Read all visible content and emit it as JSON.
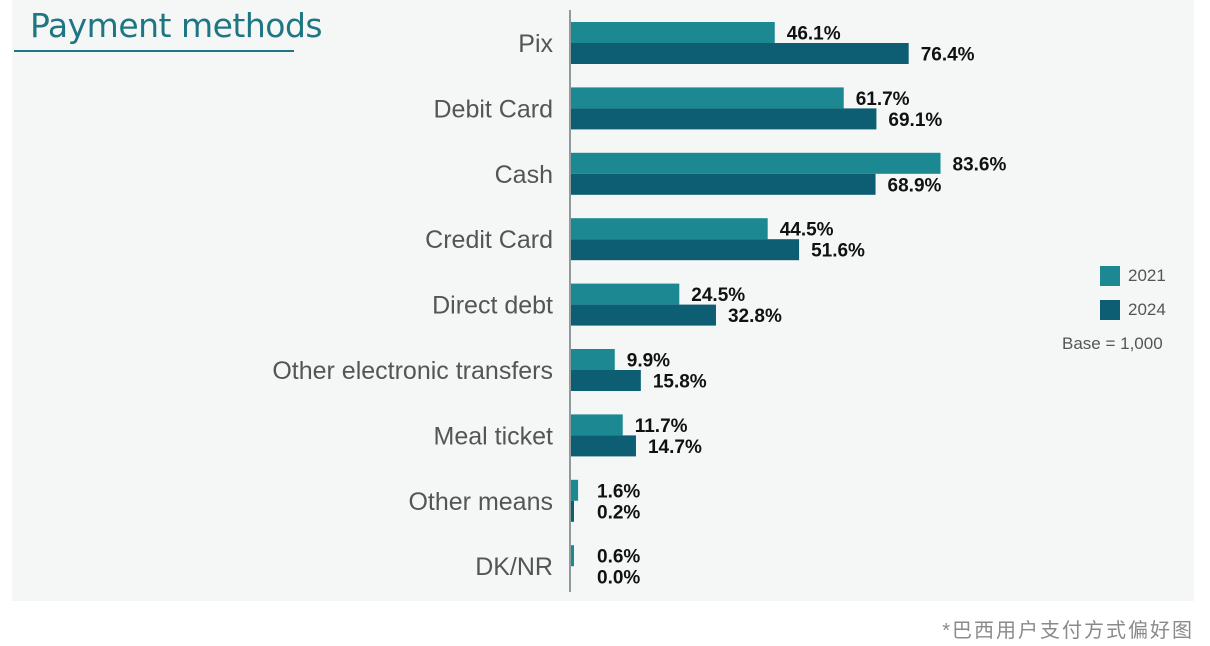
{
  "chart_data": {
    "type": "bar",
    "orientation": "horizontal",
    "title": "Payment methods",
    "categories": [
      "Pix",
      "Debit Card",
      "Cash",
      "Credit Card",
      "Direct debt",
      "Other electronic transfers",
      "Meal ticket",
      "Other means",
      "DK/NR"
    ],
    "series": [
      {
        "name": "2021",
        "color": "#1b8892",
        "values": [
          46.1,
          61.7,
          83.6,
          44.5,
          24.5,
          9.9,
          11.7,
          1.6,
          0.6
        ]
      },
      {
        "name": "2024",
        "color": "#0d5e72",
        "values": [
          76.4,
          69.1,
          68.9,
          51.6,
          32.8,
          15.8,
          14.7,
          0.2,
          0.0
        ]
      }
    ],
    "value_labels": [
      [
        "46.1%",
        "61.7%",
        "83.6%",
        "44.5%",
        "24.5%",
        "9.9%",
        "11.7%",
        "1.6%",
        "0.6%"
      ],
      [
        "76.4%",
        "69.1%",
        "68.9%",
        "51.6%",
        "32.8%",
        "15.8%",
        "14.7%",
        "0.2%",
        "0.0%"
      ]
    ],
    "unit": "%",
    "xlim": [
      0,
      100
    ],
    "grid": false,
    "legend_position": "right",
    "note": "Base = 1,000"
  },
  "footnote": "*巴西用户支付方式偏好图"
}
